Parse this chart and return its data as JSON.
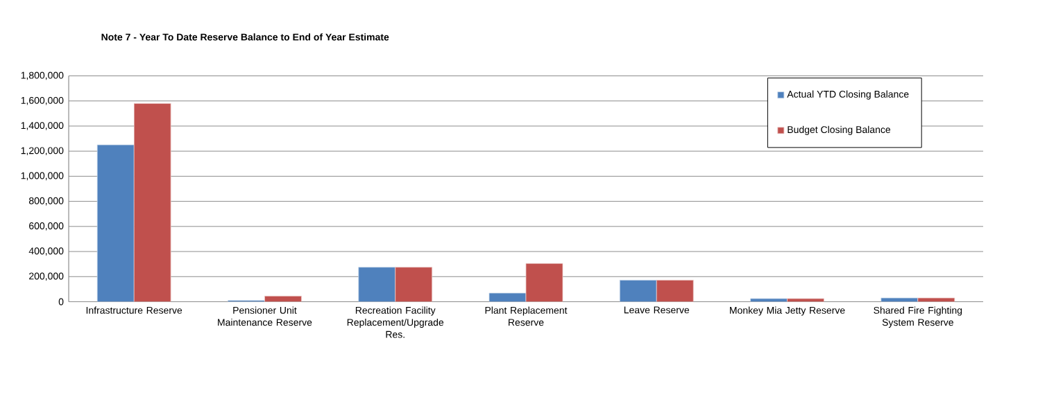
{
  "chart_data": {
    "type": "bar",
    "title": "Note 7 - Year To Date Reserve Balance to End of Year Estimate",
    "categories": [
      "Infrastructure Reserve",
      "Pensioner Unit Maintenance Reserve",
      "Recreation Facility Replacement/Upgrade Res.",
      "Plant Replacement Reserve",
      "Leave Reserve",
      "Monkey Mia Jetty Reserve",
      "Shared Fire Fighting System Reserve"
    ],
    "series": [
      {
        "name": "Actual YTD Closing Balance",
        "color": "#4f81bd",
        "values": [
          1250000,
          10000,
          275000,
          69000,
          172000,
          25000,
          30000
        ]
      },
      {
        "name": "Budget Closing Balance",
        "color": "#c0504d",
        "values": [
          1580000,
          45000,
          275000,
          305000,
          172000,
          25000,
          30000
        ]
      }
    ],
    "ylim": [
      0,
      1800000
    ],
    "yticks": [
      0,
      {
        "value": 200000,
        "label": "200,000"
      },
      {
        "value": 400000,
        "label": "400,000"
      },
      {
        "value": 600000,
        "label": "600,000"
      },
      {
        "value": 800000,
        "label": "800,000"
      },
      {
        "value": 1000000,
        "label": "1,000,000"
      },
      {
        "value": 1200000,
        "label": "1,200,000"
      },
      {
        "value": 1400000,
        "label": "1,400,000"
      },
      {
        "value": 1600000,
        "label": "1,600,000"
      },
      {
        "value": 1800000,
        "label": "1,800,000"
      }
    ],
    "grid": "y",
    "legend": "top right"
  }
}
